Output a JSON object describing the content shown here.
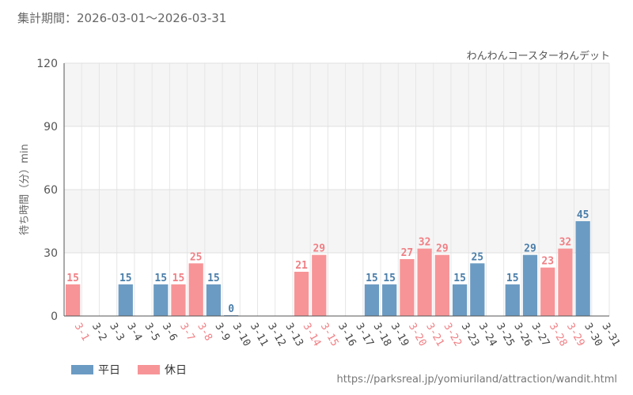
{
  "period_text": "集計期間：2026-03-01～2026-03-31",
  "source_text": "https://parksreal.jp/yomiuriland/attraction/wandit.html",
  "colors": {
    "weekday": "#6b9bc3",
    "holiday": "#f79497",
    "weekday_text": "#4a7eaa",
    "holiday_text": "#f07f84",
    "axis_text": "#444444"
  },
  "chart_data": {
    "type": "bar",
    "title": "わんわんコースターわんデット",
    "ylabel": "待ち時間（分）min",
    "xlabel": "",
    "ylim": [
      0,
      120
    ],
    "yticks": [
      0,
      30,
      60,
      90,
      120
    ],
    "grid": true,
    "legend": {
      "placement": "bottom-left",
      "entries": [
        {
          "name": "平日",
          "key": "weekday"
        },
        {
          "name": "休日",
          "key": "holiday"
        }
      ]
    },
    "categories": [
      "3-1",
      "3-2",
      "3-3",
      "3-4",
      "3-5",
      "3-6",
      "3-7",
      "3-8",
      "3-9",
      "3-10",
      "3-11",
      "3-12",
      "3-13",
      "3-14",
      "3-15",
      "3-16",
      "3-17",
      "3-18",
      "3-19",
      "3-20",
      "3-21",
      "3-22",
      "3-23",
      "3-24",
      "3-25",
      "3-26",
      "3-27",
      "3-28",
      "3-29",
      "3-30",
      "3-31"
    ],
    "day_type": [
      "holiday",
      "weekday",
      "weekday",
      "weekday",
      "weekday",
      "weekday",
      "holiday",
      "holiday",
      "weekday",
      "weekday",
      "weekday",
      "weekday",
      "weekday",
      "holiday",
      "holiday",
      "weekday",
      "weekday",
      "weekday",
      "weekday",
      "holiday",
      "holiday",
      "holiday",
      "weekday",
      "weekday",
      "weekday",
      "weekday",
      "weekday",
      "holiday",
      "holiday",
      "weekday",
      "weekday"
    ],
    "values": [
      15,
      null,
      null,
      15,
      null,
      15,
      15,
      25,
      15,
      0,
      null,
      null,
      null,
      21,
      29,
      null,
      null,
      15,
      15,
      27,
      32,
      29,
      15,
      25,
      null,
      15,
      29,
      23,
      32,
      45,
      null
    ]
  }
}
